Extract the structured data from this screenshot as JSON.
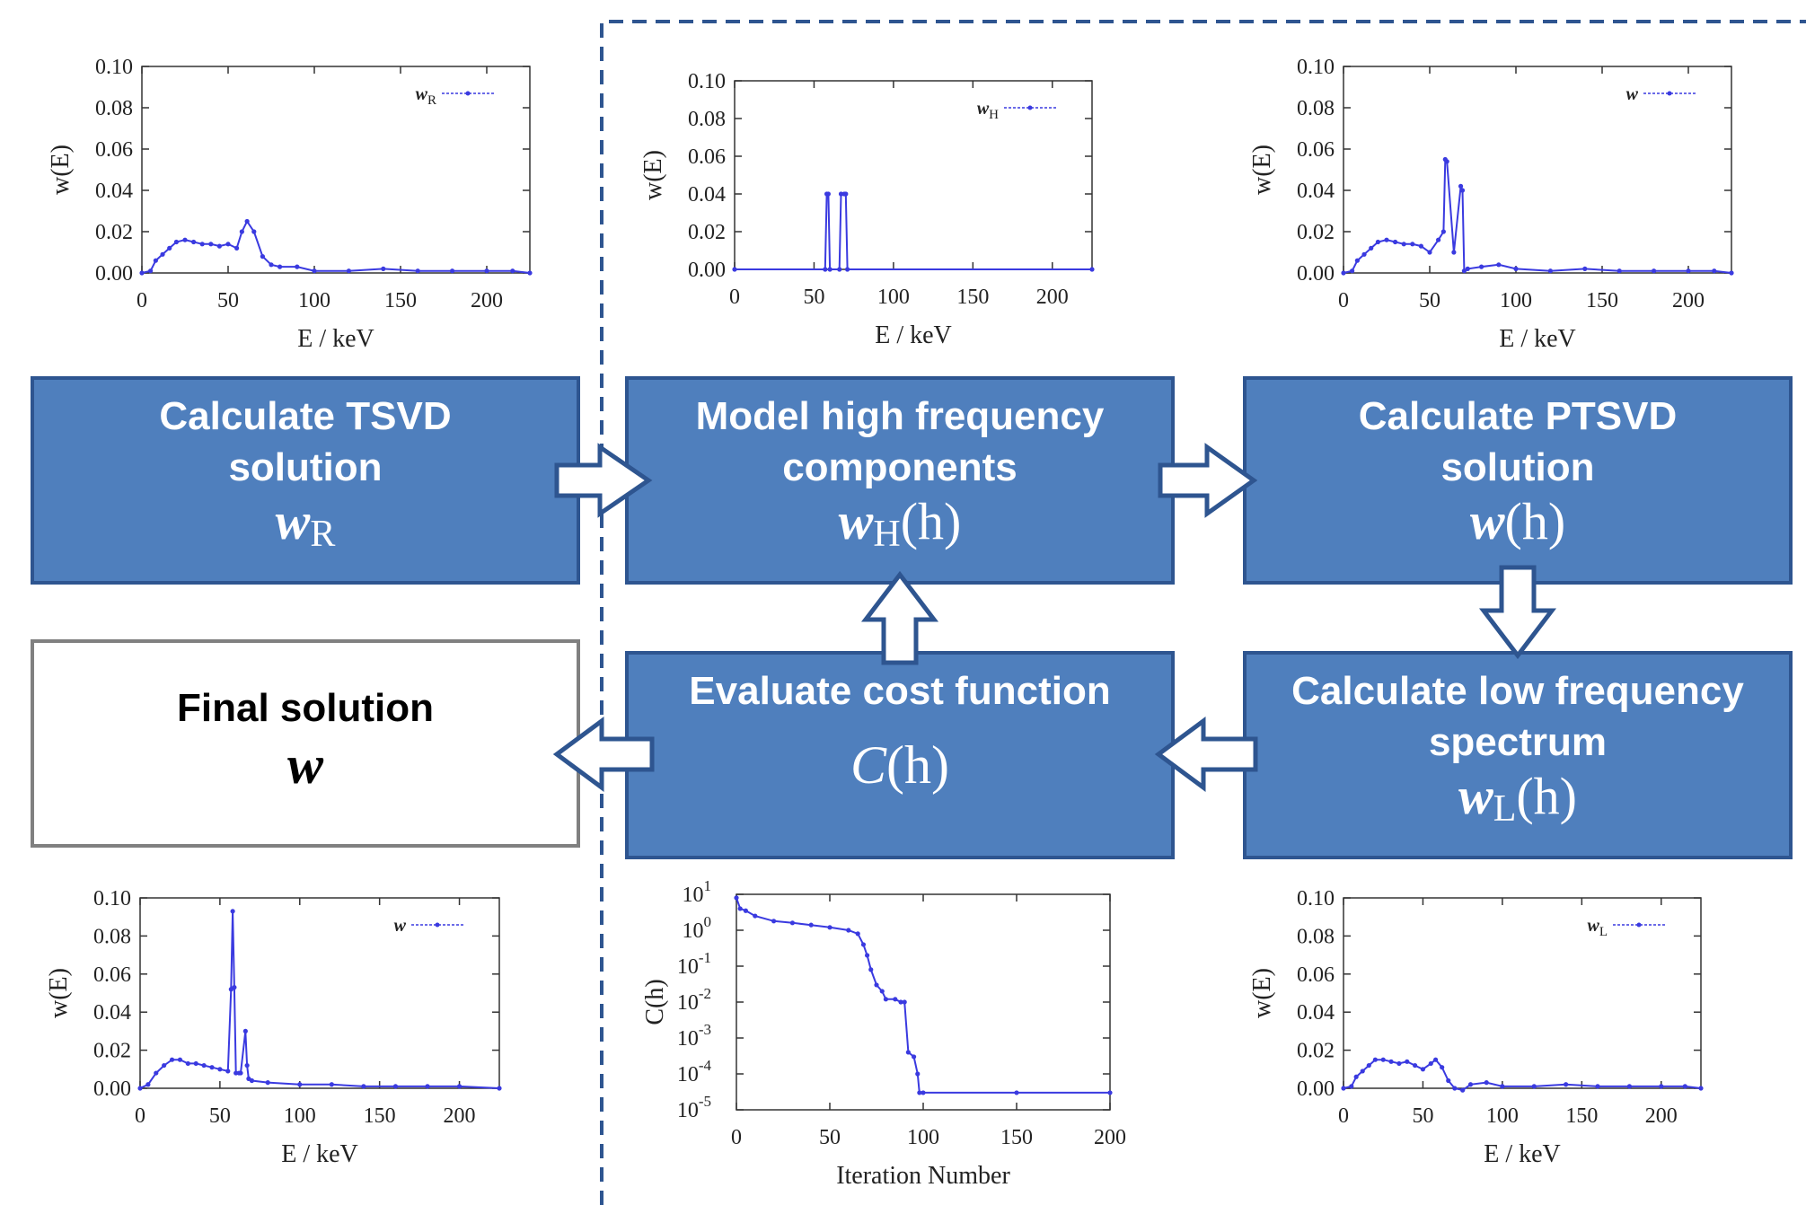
{
  "colors": {
    "box_fill": "#4f7fbd",
    "box_stroke": "#2e5590",
    "series": "#3a3ae0",
    "dash_border": "#2e5590"
  },
  "boxes": [
    {
      "id": "tsvd",
      "line1": "Calculate TSVD",
      "line2": "solution",
      "math": "w",
      "sub": "R",
      "arg": ""
    },
    {
      "id": "model",
      "line1": "Model high frequency",
      "line2": "components",
      "math": "w",
      "sub": "H",
      "arg": "(h)"
    },
    {
      "id": "ptsvd",
      "line1": "Calculate PTSVD",
      "line2": "solution",
      "math": "w",
      "sub": "",
      "arg": "(h)"
    },
    {
      "id": "cost",
      "line1": "Evaluate cost function",
      "line2": "",
      "math": "C",
      "sub": "",
      "arg": "(h)"
    },
    {
      "id": "low",
      "line1": "Calculate low frequency",
      "line2": "spectrum",
      "math": "w",
      "sub": "L",
      "arg": "(h)"
    },
    {
      "id": "final",
      "line1": "Final solution",
      "line2": "",
      "math": "w",
      "sub": "",
      "arg": ""
    }
  ],
  "chart_data": [
    {
      "id": "wR",
      "type": "line",
      "legend": "w",
      "legend_sub": "R",
      "xlabel": "E / keV",
      "ylabel": "w(E)",
      "xlim": [
        0,
        225
      ],
      "ylim": [
        0,
        0.1
      ],
      "xticks": [
        "0",
        "50",
        "100",
        "150",
        "200"
      ],
      "yticks": [
        "0.00",
        "0.02",
        "0.04",
        "0.06",
        "0.08",
        "0.10"
      ],
      "x": [
        0,
        5,
        8,
        12,
        16,
        20,
        25,
        30,
        35,
        40,
        45,
        50,
        55,
        58,
        61,
        65,
        70,
        75,
        80,
        90,
        100,
        120,
        140,
        160,
        180,
        200,
        215,
        225
      ],
      "y": [
        0,
        0.001,
        0.006,
        0.009,
        0.012,
        0.015,
        0.016,
        0.015,
        0.014,
        0.014,
        0.013,
        0.014,
        0.012,
        0.02,
        0.025,
        0.02,
        0.008,
        0.004,
        0.003,
        0.003,
        0.001,
        0.001,
        0.002,
        0.001,
        0.001,
        0.001,
        0.001,
        0.0
      ]
    },
    {
      "id": "wH",
      "type": "line",
      "legend": "w",
      "legend_sub": "H",
      "xlabel": "E / keV",
      "ylabel": "w(E)",
      "xlim": [
        0,
        225
      ],
      "ylim": [
        0,
        0.1
      ],
      "xticks": [
        "0",
        "50",
        "100",
        "150",
        "200"
      ],
      "yticks": [
        "0.00",
        "0.02",
        "0.04",
        "0.06",
        "0.08",
        "0.10"
      ],
      "x": [
        0,
        57,
        58,
        59,
        60,
        66,
        67,
        69,
        70,
        71,
        225
      ],
      "y": [
        0,
        0,
        0.04,
        0.04,
        0,
        0,
        0.04,
        0.04,
        0.04,
        0,
        0
      ]
    },
    {
      "id": "w",
      "type": "line",
      "legend": "w",
      "legend_sub": "",
      "xlabel": "E / keV",
      "ylabel": "w(E)",
      "xlim": [
        0,
        225
      ],
      "ylim": [
        0,
        0.1
      ],
      "xticks": [
        "0",
        "50",
        "100",
        "150",
        "200"
      ],
      "yticks": [
        "0.00",
        "0.02",
        "0.04",
        "0.06",
        "0.08",
        "0.10"
      ],
      "x": [
        0,
        5,
        8,
        12,
        16,
        20,
        25,
        30,
        35,
        40,
        45,
        50,
        55,
        58,
        59,
        60,
        64,
        68,
        69,
        70,
        72,
        80,
        90,
        100,
        120,
        140,
        160,
        180,
        200,
        215,
        225
      ],
      "y": [
        0,
        0.001,
        0.006,
        0.009,
        0.012,
        0.015,
        0.016,
        0.015,
        0.014,
        0.014,
        0.013,
        0.01,
        0.016,
        0.02,
        0.055,
        0.054,
        0.01,
        0.042,
        0.04,
        0.001,
        0.002,
        0.003,
        0.004,
        0.002,
        0.001,
        0.002,
        0.001,
        0.001,
        0.001,
        0.001,
        0.0
      ]
    },
    {
      "id": "cost",
      "type": "line",
      "legend": "",
      "legend_sub": "",
      "xlabel": "Iteration Number",
      "ylabel": "C(h)",
      "xlim": [
        0,
        200
      ],
      "ylim_log": [
        -5,
        1
      ],
      "yscale": "log",
      "xticks": [
        "0",
        "50",
        "100",
        "150",
        "200"
      ],
      "yticks": [
        "10",
        "10",
        "10",
        "10",
        "10",
        "10",
        "10"
      ],
      "yticks_exp": [
        "-5",
        "-4",
        "-3",
        "-2",
        "-1",
        "0",
        "1"
      ],
      "x": [
        0,
        2,
        5,
        10,
        20,
        30,
        40,
        50,
        60,
        65,
        68,
        70,
        72,
        75,
        78,
        80,
        85,
        88,
        90,
        92,
        95,
        97,
        98,
        100,
        150,
        200
      ],
      "y": [
        8,
        4,
        3.5,
        2.5,
        1.8,
        1.6,
        1.4,
        1.2,
        1.0,
        0.8,
        0.4,
        0.2,
        0.08,
        0.03,
        0.02,
        0.012,
        0.012,
        0.01,
        0.01,
        0.0004,
        0.0003,
        0.0001,
        3e-05,
        3e-05,
        3e-05,
        3e-05
      ]
    },
    {
      "id": "wfinal",
      "type": "line",
      "legend": "w",
      "legend_sub": "",
      "xlabel": "E / keV",
      "ylabel": "w(E)",
      "xlim": [
        0,
        225
      ],
      "ylim": [
        0,
        0.1
      ],
      "xticks": [
        "0",
        "50",
        "100",
        "150",
        "200"
      ],
      "yticks": [
        "0.00",
        "0.02",
        "0.04",
        "0.06",
        "0.08",
        "0.10"
      ],
      "x": [
        0,
        5,
        10,
        15,
        20,
        25,
        30,
        35,
        40,
        45,
        50,
        55,
        57,
        58,
        59,
        60,
        62,
        63,
        66,
        67,
        68,
        70,
        80,
        100,
        120,
        140,
        160,
        180,
        200,
        225
      ],
      "y": [
        0,
        0.002,
        0.008,
        0.012,
        0.015,
        0.015,
        0.013,
        0.013,
        0.012,
        0.011,
        0.01,
        0.009,
        0.052,
        0.093,
        0.053,
        0.008,
        0.008,
        0.008,
        0.03,
        0.012,
        0.005,
        0.004,
        0.003,
        0.002,
        0.002,
        0.001,
        0.001,
        0.001,
        0.001,
        0.0
      ]
    },
    {
      "id": "wL",
      "type": "line",
      "legend": "w",
      "legend_sub": "L",
      "xlabel": "E / keV",
      "ylabel": "w(E)",
      "xlim": [
        0,
        225
      ],
      "ylim": [
        0,
        0.1
      ],
      "xticks": [
        "0",
        "50",
        "100",
        "150",
        "200"
      ],
      "yticks": [
        "0.00",
        "0.02",
        "0.04",
        "0.06",
        "0.08",
        "0.10"
      ],
      "x": [
        0,
        5,
        8,
        12,
        16,
        20,
        25,
        30,
        35,
        40,
        45,
        50,
        55,
        58,
        62,
        66,
        70,
        75,
        80,
        90,
        100,
        120,
        140,
        160,
        180,
        200,
        215,
        225
      ],
      "y": [
        0,
        0.001,
        0.006,
        0.009,
        0.012,
        0.015,
        0.015,
        0.014,
        0.013,
        0.014,
        0.012,
        0.01,
        0.013,
        0.015,
        0.011,
        0.004,
        0.0,
        -0.001,
        0.002,
        0.003,
        0.001,
        0.001,
        0.002,
        0.001,
        0.001,
        0.001,
        0.001,
        0.0
      ]
    }
  ]
}
